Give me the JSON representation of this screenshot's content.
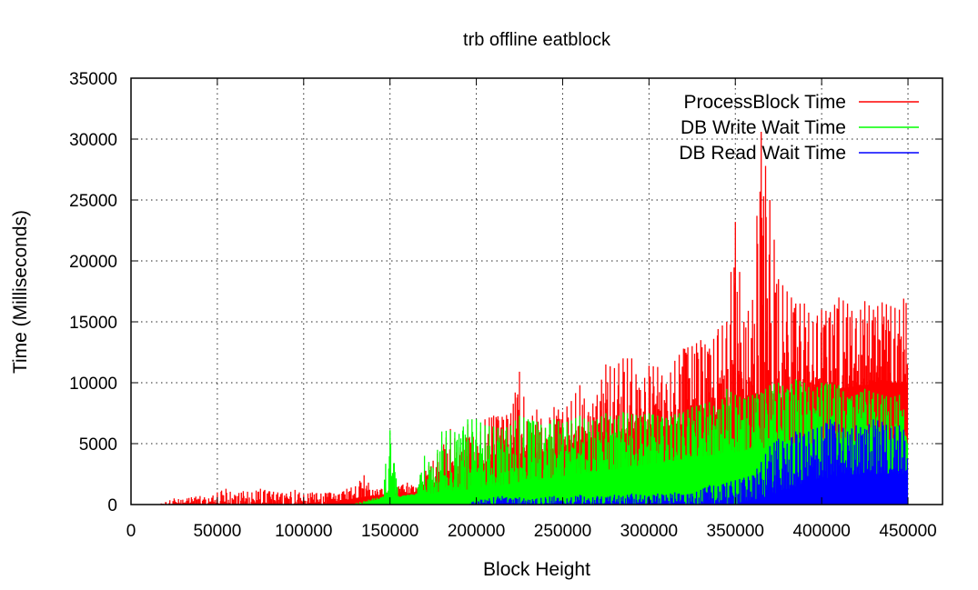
{
  "chart_data": {
    "type": "line",
    "title": "trb offline eatblock",
    "xlabel": "Block Height",
    "ylabel": "Time (Milliseconds)",
    "xlim": [
      0,
      470000
    ],
    "ylim": [
      0,
      35000
    ],
    "xticks": [
      0,
      50000,
      100000,
      150000,
      200000,
      250000,
      300000,
      350000,
      400000,
      450000
    ],
    "yticks": [
      0,
      5000,
      10000,
      15000,
      20000,
      25000,
      30000,
      35000
    ],
    "grid": true,
    "legend_position": "top-right",
    "x_step": 5000,
    "series": [
      {
        "name": "ProcessBlock Time",
        "color": "#ff0000",
        "x": [
          0,
          5000,
          10000,
          15000,
          20000,
          25000,
          30000,
          35000,
          40000,
          45000,
          50000,
          55000,
          60000,
          65000,
          70000,
          75000,
          80000,
          85000,
          90000,
          95000,
          100000,
          105000,
          110000,
          115000,
          120000,
          125000,
          130000,
          135000,
          140000,
          145000,
          150000,
          155000,
          160000,
          165000,
          170000,
          175000,
          180000,
          185000,
          190000,
          195000,
          200000,
          205000,
          210000,
          215000,
          220000,
          225000,
          230000,
          235000,
          240000,
          245000,
          250000,
          255000,
          260000,
          265000,
          270000,
          275000,
          280000,
          285000,
          290000,
          295000,
          300000,
          305000,
          310000,
          315000,
          320000,
          325000,
          330000,
          335000,
          340000,
          345000,
          350000,
          355000,
          360000,
          365000,
          370000,
          375000,
          380000,
          385000,
          390000,
          395000,
          400000,
          405000,
          410000,
          415000,
          420000,
          425000,
          430000,
          435000,
          440000,
          445000,
          450000
        ],
        "y": [
          0,
          0,
          0,
          0,
          0,
          0,
          0,
          0,
          0,
          0,
          0,
          0,
          0,
          0,
          0,
          0,
          0,
          0,
          0,
          0,
          0,
          0,
          0,
          0,
          0,
          0,
          0,
          0,
          0,
          0,
          0,
          0,
          0,
          0,
          0,
          0,
          0,
          0,
          0,
          0,
          0,
          0,
          0,
          0,
          0,
          0,
          0,
          0,
          0,
          0,
          0,
          0,
          0,
          0,
          0,
          0,
          0,
          0,
          0,
          0,
          0,
          0,
          0,
          0,
          0,
          0,
          0,
          0,
          0,
          0,
          0,
          0,
          0,
          0,
          0,
          0,
          0,
          0,
          0,
          0,
          0,
          0,
          0,
          0,
          0,
          0,
          0,
          0,
          0,
          0,
          0
        ],
        "low": [
          0,
          0,
          0,
          0,
          0,
          0,
          0,
          0,
          0,
          0,
          0,
          0,
          0,
          0,
          0,
          0,
          0,
          0,
          0,
          0,
          0,
          0,
          0,
          0,
          0,
          0,
          0,
          0,
          0,
          0,
          0,
          0,
          0,
          0,
          0,
          0,
          0,
          0,
          0,
          0,
          0,
          0,
          0,
          0,
          0,
          0,
          0,
          0,
          0,
          0,
          0,
          0,
          0,
          0,
          0,
          0,
          0,
          0,
          0,
          0,
          0,
          0,
          0,
          0,
          0,
          0,
          0,
          0,
          0,
          0,
          0,
          0,
          0,
          0,
          0,
          0,
          0,
          0,
          0,
          0,
          0,
          0,
          0,
          0,
          0,
          0,
          0,
          0,
          0,
          0,
          0
        ],
        "high": [
          0,
          0,
          0,
          0,
          200,
          500,
          400,
          600,
          700,
          500,
          1000,
          1300,
          800,
          1100,
          1000,
          1300,
          1100,
          1000,
          900,
          1200,
          800,
          1000,
          900,
          1000,
          800,
          1300,
          1500,
          2400,
          1200,
          1300,
          1300,
          1500,
          1800,
          1400,
          2800,
          3600,
          4800,
          6200,
          4700,
          6600,
          5000,
          7000,
          7300,
          7200,
          7500,
          10900,
          6800,
          7800,
          6300,
          8000,
          7600,
          8500,
          9800,
          7600,
          9000,
          11500,
          11200,
          12000,
          12000,
          9400,
          11400,
          11300,
          9900,
          11800,
          12800,
          13000,
          13500,
          12800,
          14400,
          15000,
          23200,
          15000,
          16800,
          30600,
          25000,
          18500,
          17500,
          16500,
          16500,
          15000,
          16000,
          15800,
          17000,
          16500,
          15300,
          16700,
          16000,
          16600,
          16300,
          16000,
          17800
        ],
        "base": [
          0,
          0,
          0,
          0,
          0,
          0,
          0,
          0,
          0,
          0,
          0,
          0,
          0,
          0,
          0,
          0,
          0,
          0,
          0,
          0,
          0,
          0,
          0,
          100,
          200,
          400,
          500,
          600,
          700,
          800,
          800,
          800,
          900,
          1000,
          1200,
          1500,
          2000,
          2200,
          2500,
          2700,
          3000,
          3200,
          3300,
          3500,
          3600,
          3800,
          4000,
          4200,
          4300,
          4500,
          4700,
          4900,
          5000,
          5200,
          5400,
          5500,
          5600,
          5800,
          5900,
          6000,
          6100,
          6300,
          6400,
          6500,
          6600,
          6800,
          7000,
          7200,
          7400,
          7600,
          7800,
          8000,
          8200,
          8400,
          8500,
          8600,
          8800,
          9000,
          9100,
          9200,
          9300,
          9400,
          9500,
          9600,
          9700,
          9800,
          9900,
          10000,
          10000,
          10000,
          10000
        ]
      },
      {
        "name": "DB Write Wait Time",
        "color": "#00ff00",
        "x": [
          0,
          5000,
          10000,
          15000,
          20000,
          25000,
          30000,
          35000,
          40000,
          45000,
          50000,
          55000,
          60000,
          65000,
          70000,
          75000,
          80000,
          85000,
          90000,
          95000,
          100000,
          105000,
          110000,
          115000,
          120000,
          125000,
          130000,
          135000,
          140000,
          145000,
          150000,
          155000,
          160000,
          165000,
          170000,
          175000,
          180000,
          185000,
          190000,
          195000,
          200000,
          205000,
          210000,
          215000,
          220000,
          225000,
          230000,
          235000,
          240000,
          245000,
          250000,
          255000,
          260000,
          265000,
          270000,
          275000,
          280000,
          285000,
          290000,
          295000,
          300000,
          305000,
          310000,
          315000,
          320000,
          325000,
          330000,
          335000,
          340000,
          345000,
          350000,
          355000,
          360000,
          365000,
          370000,
          375000,
          380000,
          385000,
          390000,
          395000,
          400000,
          405000,
          410000,
          415000,
          420000,
          425000,
          430000,
          435000,
          440000,
          445000,
          450000
        ],
        "y": [
          0,
          0,
          0,
          0,
          0,
          0,
          0,
          0,
          0,
          0,
          0,
          0,
          0,
          0,
          0,
          0,
          0,
          0,
          0,
          0,
          0,
          0,
          0,
          0,
          0,
          0,
          0,
          0,
          0,
          0,
          0,
          0,
          0,
          0,
          0,
          0,
          0,
          0,
          0,
          0,
          0,
          0,
          0,
          0,
          0,
          0,
          0,
          0,
          0,
          0,
          0,
          0,
          0,
          0,
          0,
          0,
          0,
          0,
          0,
          0,
          0,
          0,
          0,
          0,
          0,
          0,
          0,
          0,
          0,
          0,
          0,
          0,
          0,
          0,
          0,
          0,
          0,
          0,
          0,
          0,
          0,
          0,
          0,
          0,
          0,
          0,
          0,
          0,
          0,
          0,
          0
        ],
        "high": [
          0,
          0,
          0,
          0,
          0,
          0,
          0,
          0,
          0,
          0,
          0,
          0,
          0,
          0,
          0,
          0,
          0,
          0,
          0,
          0,
          0,
          0,
          0,
          0,
          0,
          0,
          100,
          300,
          500,
          600,
          6100,
          700,
          800,
          900,
          4000,
          3000,
          6000,
          6100,
          5800,
          7000,
          7000,
          6500,
          6400,
          6200,
          6500,
          7300,
          7000,
          6800,
          6300,
          7000,
          6700,
          6900,
          7300,
          6800,
          7000,
          7500,
          7000,
          7600,
          7400,
          7300,
          7500,
          7300,
          7100,
          7400,
          7600,
          8000,
          8200,
          8400,
          7800,
          9500,
          9000,
          8700,
          9000,
          9200,
          9800,
          10000,
          9500,
          10300,
          10000,
          9300,
          10000,
          9900,
          9800,
          8800,
          9000,
          9500,
          9200,
          9000,
          8800,
          9000,
          6600
        ],
        "base": [
          0,
          0,
          0,
          0,
          0,
          0,
          0,
          0,
          0,
          0,
          0,
          0,
          0,
          0,
          0,
          0,
          0,
          0,
          0,
          0,
          0,
          0,
          0,
          0,
          0,
          0,
          0,
          100,
          300,
          500,
          600,
          600,
          700,
          800,
          900,
          900,
          1000,
          1100,
          1100,
          1200,
          1300,
          1400,
          1500,
          1600,
          1700,
          1800,
          1900,
          2000,
          2100,
          2200,
          2300,
          2400,
          2500,
          2600,
          2700,
          2800,
          2900,
          3000,
          3100,
          3200,
          3300,
          3400,
          3500,
          3600,
          3700,
          3800,
          3900,
          4000,
          4100,
          4200,
          4300,
          4400,
          4500,
          4600,
          4700,
          4800,
          4900,
          5000,
          5000,
          5000,
          5000,
          5000,
          5000,
          5000,
          5000,
          5000,
          5000,
          5000,
          5000,
          5000,
          5000
        ]
      },
      {
        "name": "DB Read Wait Time",
        "color": "#0000ff",
        "x": [
          0,
          5000,
          10000,
          15000,
          20000,
          25000,
          30000,
          35000,
          40000,
          45000,
          50000,
          55000,
          60000,
          65000,
          70000,
          75000,
          80000,
          85000,
          90000,
          95000,
          100000,
          105000,
          110000,
          115000,
          120000,
          125000,
          130000,
          135000,
          140000,
          145000,
          150000,
          155000,
          160000,
          165000,
          170000,
          175000,
          180000,
          185000,
          190000,
          195000,
          200000,
          205000,
          210000,
          215000,
          220000,
          225000,
          230000,
          235000,
          240000,
          245000,
          250000,
          255000,
          260000,
          265000,
          270000,
          275000,
          280000,
          285000,
          290000,
          295000,
          300000,
          305000,
          310000,
          315000,
          320000,
          325000,
          330000,
          335000,
          340000,
          345000,
          350000,
          355000,
          360000,
          365000,
          370000,
          375000,
          380000,
          385000,
          390000,
          395000,
          400000,
          405000,
          410000,
          415000,
          420000,
          425000,
          430000,
          435000,
          440000,
          445000,
          450000
        ],
        "y": [
          0,
          0,
          0,
          0,
          0,
          0,
          0,
          0,
          0,
          0,
          0,
          0,
          0,
          0,
          0,
          0,
          0,
          0,
          0,
          0,
          0,
          0,
          0,
          0,
          0,
          0,
          0,
          0,
          0,
          0,
          0,
          0,
          0,
          0,
          0,
          0,
          0,
          0,
          0,
          0,
          0,
          0,
          0,
          0,
          0,
          0,
          0,
          0,
          0,
          0,
          0,
          0,
          0,
          0,
          0,
          0,
          0,
          0,
          0,
          0,
          0,
          0,
          0,
          0,
          0,
          0,
          0,
          0,
          0,
          0,
          0,
          0,
          0,
          0,
          0,
          0,
          0,
          0,
          0,
          0,
          0,
          0,
          0,
          0,
          0,
          0,
          0,
          0,
          0,
          0,
          0
        ],
        "high": [
          0,
          0,
          0,
          0,
          0,
          0,
          0,
          0,
          0,
          0,
          0,
          0,
          0,
          0,
          0,
          0,
          0,
          0,
          0,
          0,
          0,
          0,
          0,
          0,
          0,
          0,
          0,
          0,
          0,
          0,
          0,
          0,
          0,
          0,
          0,
          0,
          0,
          0,
          0,
          0,
          400,
          400,
          600,
          700,
          500,
          600,
          400,
          500,
          600,
          700,
          400,
          600,
          800,
          500,
          700,
          600,
          800,
          700,
          900,
          800,
          700,
          900,
          800,
          1000,
          800,
          900,
          1200,
          1600,
          1500,
          1800,
          2000,
          2200,
          2400,
          3500,
          4800,
          5400,
          5000,
          6000,
          5800,
          6200,
          6400,
          7000,
          6600,
          6000,
          6500,
          6200,
          7000,
          6800,
          6300,
          6500,
          5800
        ],
        "base": [
          0,
          0,
          0,
          0,
          0,
          0,
          0,
          0,
          0,
          0,
          0,
          0,
          0,
          0,
          0,
          0,
          0,
          0,
          0,
          0,
          0,
          0,
          0,
          0,
          0,
          0,
          0,
          0,
          0,
          0,
          0,
          0,
          0,
          0,
          0,
          0,
          0,
          0,
          0,
          0,
          0,
          0,
          0,
          0,
          0,
          0,
          0,
          0,
          0,
          0,
          0,
          0,
          0,
          0,
          0,
          0,
          0,
          0,
          0,
          0,
          0,
          0,
          0,
          0,
          0,
          0,
          0,
          0,
          0,
          0,
          0,
          100,
          200,
          500,
          800,
          1000,
          1200,
          1500,
          1800,
          2000,
          2100,
          2200,
          2300,
          2400,
          2500,
          2500,
          2500,
          2500,
          2500,
          2500,
          2500
        ]
      }
    ]
  }
}
